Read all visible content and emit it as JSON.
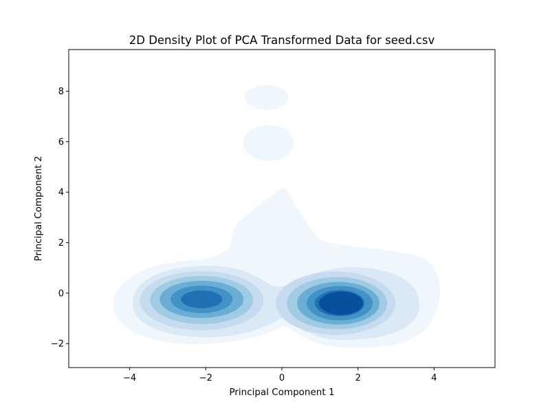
{
  "chart_data": {
    "type": "contour",
    "title": "2D Density Plot of PCA Transformed Data for seed.csv",
    "xlabel": "Principal Component 1",
    "ylabel": "Principal Component 2",
    "xlim": [
      -5.6,
      5.6
    ],
    "ylim": [
      -2.95,
      9.65
    ],
    "xticks": [
      -4,
      -2,
      0,
      2,
      4
    ],
    "yticks": [
      -2,
      0,
      2,
      4,
      6,
      8
    ],
    "xtick_labels": [
      "−4",
      "−2",
      "0",
      "2",
      "4"
    ],
    "ytick_labels": [
      "−2",
      "0",
      "2",
      "4",
      "6",
      "8"
    ],
    "colormap": "Blues",
    "grid": false,
    "density_peaks": [
      {
        "x": -2.0,
        "y": -0.3
      },
      {
        "x": 1.7,
        "y": -0.4
      },
      {
        "x": -0.4,
        "y": 7.75
      },
      {
        "x": -0.35,
        "y": 5.95
      }
    ],
    "contour_colors": [
      "#eff6fc",
      "#dbe9f6",
      "#c6dbef",
      "#a0cbe2",
      "#6aaed6",
      "#4292c6",
      "#2070b4",
      "#08509b"
    ]
  }
}
